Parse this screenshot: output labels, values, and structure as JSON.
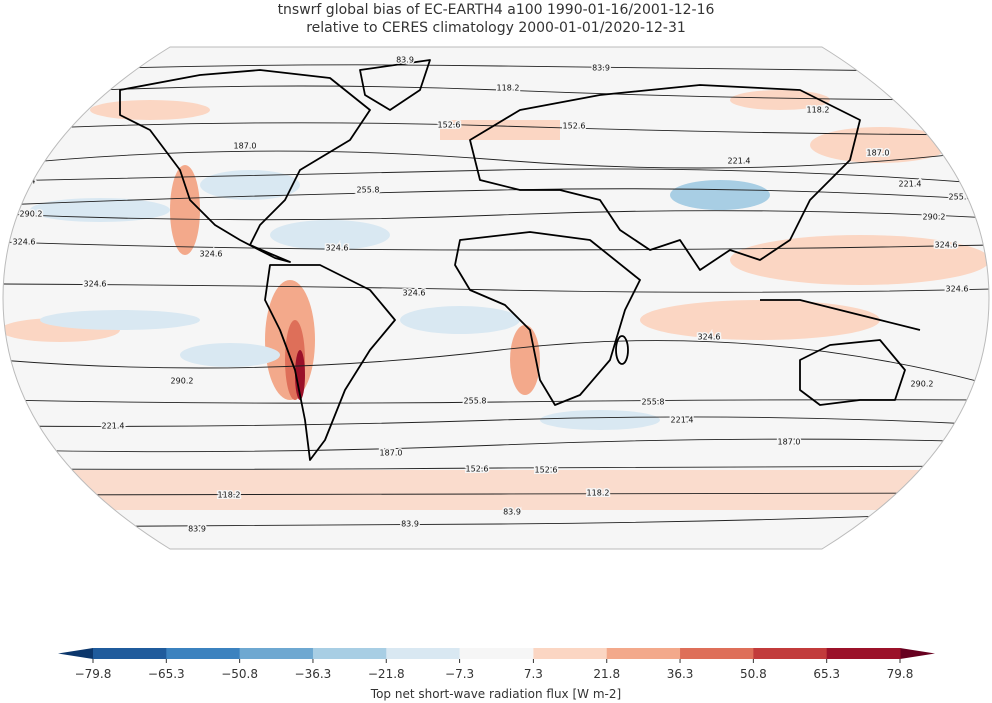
{
  "title_lines": [
    "tnswrf global bias of EC-EARTH4 a100 1990-01-16/2001-12-16",
    "relative to CERES climatology 2000-01-01/2020-12-31"
  ],
  "map": {
    "contour_labels": [
      "83.9",
      "118.2",
      "152.6",
      "187.0",
      "221.4",
      "255.8",
      "290.2",
      "324.6"
    ]
  },
  "colorbar": {
    "label": "Top net short-wave radiation flux [W m-2]",
    "lim": [
      -79.8,
      79.8
    ],
    "ticks": [
      {
        "value": -79.8,
        "label": "−79.8"
      },
      {
        "value": -65.3,
        "label": "−65.3"
      },
      {
        "value": -50.8,
        "label": "−50.8"
      },
      {
        "value": -36.3,
        "label": "−36.3"
      },
      {
        "value": -21.8,
        "label": "−21.8"
      },
      {
        "value": -7.3,
        "label": "−7.3"
      },
      7.3,
      21.8,
      36.3,
      50.8,
      65.3,
      79.8
    ],
    "colors": [
      "#1f5b9c",
      "#3b82bf",
      "#6ea8d1",
      "#a8cee4",
      "#d9e8f2",
      "#f6f6f6",
      "#fbd6c3",
      "#f3a98b",
      "#de6f59",
      "#c23b3b",
      "#9b1129"
    ],
    "extend_colors": [
      "#0b366b",
      "#67001f"
    ]
  }
}
